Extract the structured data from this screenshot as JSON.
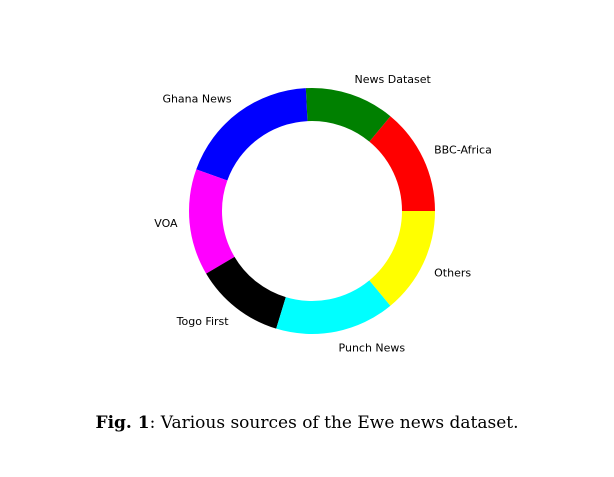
{
  "chart_data": {
    "type": "pie",
    "style": "donut",
    "start": "right",
    "direction": "counterclockwise",
    "slices": [
      {
        "label": "BBC-Africa",
        "value": 14.0,
        "color": "#ff0000"
      },
      {
        "label": "News Dataset",
        "value": 11.8,
        "color": "#008000"
      },
      {
        "label": "Ghana News",
        "value": 18.7,
        "color": "#0000ff"
      },
      {
        "label": "VOA",
        "value": 14.0,
        "color": "#ff00ff"
      },
      {
        "label": "Togo First",
        "value": 11.8,
        "color": "#000000"
      },
      {
        "label": "Punch News",
        "value": 15.7,
        "color": "#00ffff"
      },
      {
        "label": "Others",
        "value": 14.0,
        "color": "#ffff00"
      }
    ]
  },
  "caption": {
    "label": "Fig. 1",
    "text": ": Various sources of the Ewe news dataset."
  }
}
